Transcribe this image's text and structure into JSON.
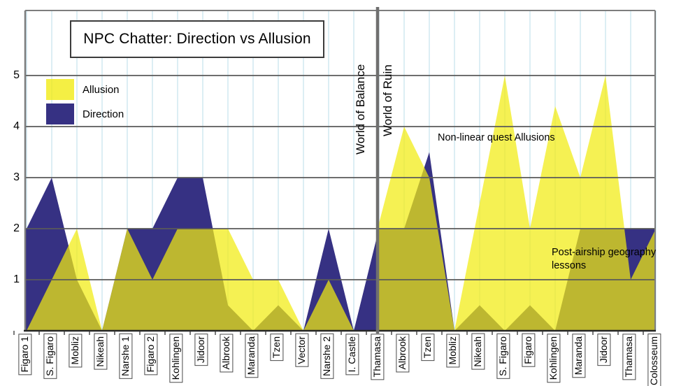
{
  "title": "NPC Chatter: Direction vs Allusion",
  "legend": {
    "allusion_label": "Allusion",
    "direction_label": "Direction"
  },
  "world_labels": {
    "left": "World of Balance",
    "right": "World of Ruin"
  },
  "annotations": {
    "nonlinear": "Non-linear quest Allusions",
    "postairship_line1": "Post-airship geography",
    "postairship_line2": "lessons"
  },
  "colors": {
    "allusion": "#f1eb10",
    "direction": "#363183",
    "grid_h": "#5a5a5a",
    "grid_v": "#b9dcea",
    "frame": "#7d7d7d",
    "baseline": "#262626",
    "divider": "#6f6f6f",
    "tick": "#333333"
  },
  "chart_data": {
    "type": "area",
    "title": "NPC Chatter: Direction vs Allusion",
    "ylabel": "",
    "xlabel": "",
    "ylim": [
      0,
      5
    ],
    "yticks": [
      1,
      2,
      3,
      4,
      5
    ],
    "legend_entries": [
      "Allusion",
      "Direction"
    ],
    "legend_position": "top-left",
    "grid": true,
    "divider_label_left": "World of Balance",
    "divider_label_right": "World of Ruin",
    "boundary_values": {
      "allusion": 2,
      "direction": 2
    },
    "sections": [
      {
        "name": "World of Balance",
        "categories": [
          "Figaro 1",
          "S. Figaro",
          "Mobliz",
          "Nikeah",
          "Narshe 1",
          "Figaro 2",
          "Kohlingen",
          "Jidoor",
          "Albrook",
          "Maranda",
          "Tzen",
          "Vector",
          "Narshe 2",
          "I. Castle",
          "Thamasa"
        ],
        "series": [
          {
            "name": "Allusion",
            "values": [
              0,
              1,
              2,
              0,
              2,
              1,
              2,
              2,
              2,
              1,
              1,
              0,
              1,
              0,
              0
            ]
          },
          {
            "name": "Direction",
            "values": [
              2,
              3,
              1,
              0,
              2,
              2,
              3,
              3,
              0.5,
              0,
              0.5,
              0,
              2,
              0,
              2
            ]
          }
        ]
      },
      {
        "name": "World of Ruin",
        "categories": [
          "Albrook",
          "Tzen",
          "Mobliz",
          "Nikeah",
          "S. Figaro",
          "Figaro",
          "Kohlingen",
          "Maranda",
          "Jidoor",
          "Thamasa",
          "Colosseum"
        ],
        "series": [
          {
            "name": "Allusion",
            "values": [
              4,
              3,
              0,
              2.5,
              5,
              2,
              4.4,
              3,
              5,
              1,
              2
            ]
          },
          {
            "name": "Direction",
            "values": [
              2,
              3.5,
              0,
              0.5,
              0,
              0.5,
              0,
              2,
              2,
              2,
              2
            ]
          }
        ]
      }
    ],
    "annotations": [
      "Non-linear quest Allusions",
      "Post-airship geography lessons"
    ]
  }
}
